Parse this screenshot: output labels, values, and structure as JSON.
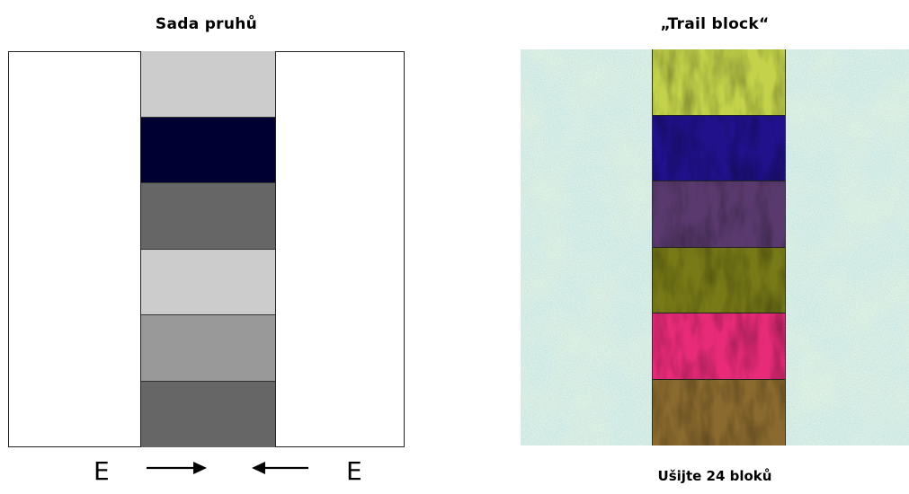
{
  "left_panel": {
    "title": "Sada pruhů",
    "segments": [
      {
        "color": "#cccccc"
      },
      {
        "color": "#000033"
      },
      {
        "color": "#666666"
      },
      {
        "color": "#cccccc"
      },
      {
        "color": "#999999"
      },
      {
        "color": "#666666"
      }
    ],
    "edge_label_left": "E",
    "edge_label_right": "E"
  },
  "right_panel": {
    "title": "„Trail block“",
    "background_color": "#c9e6df",
    "segments": [
      {
        "color": "#c3d24a"
      },
      {
        "color": "#21118a"
      },
      {
        "color": "#5a3a6e"
      },
      {
        "color": "#787a17"
      },
      {
        "color": "#e72b78"
      },
      {
        "color": "#8a6a2e"
      }
    ],
    "caption": "Ušijte 24 bloků"
  }
}
